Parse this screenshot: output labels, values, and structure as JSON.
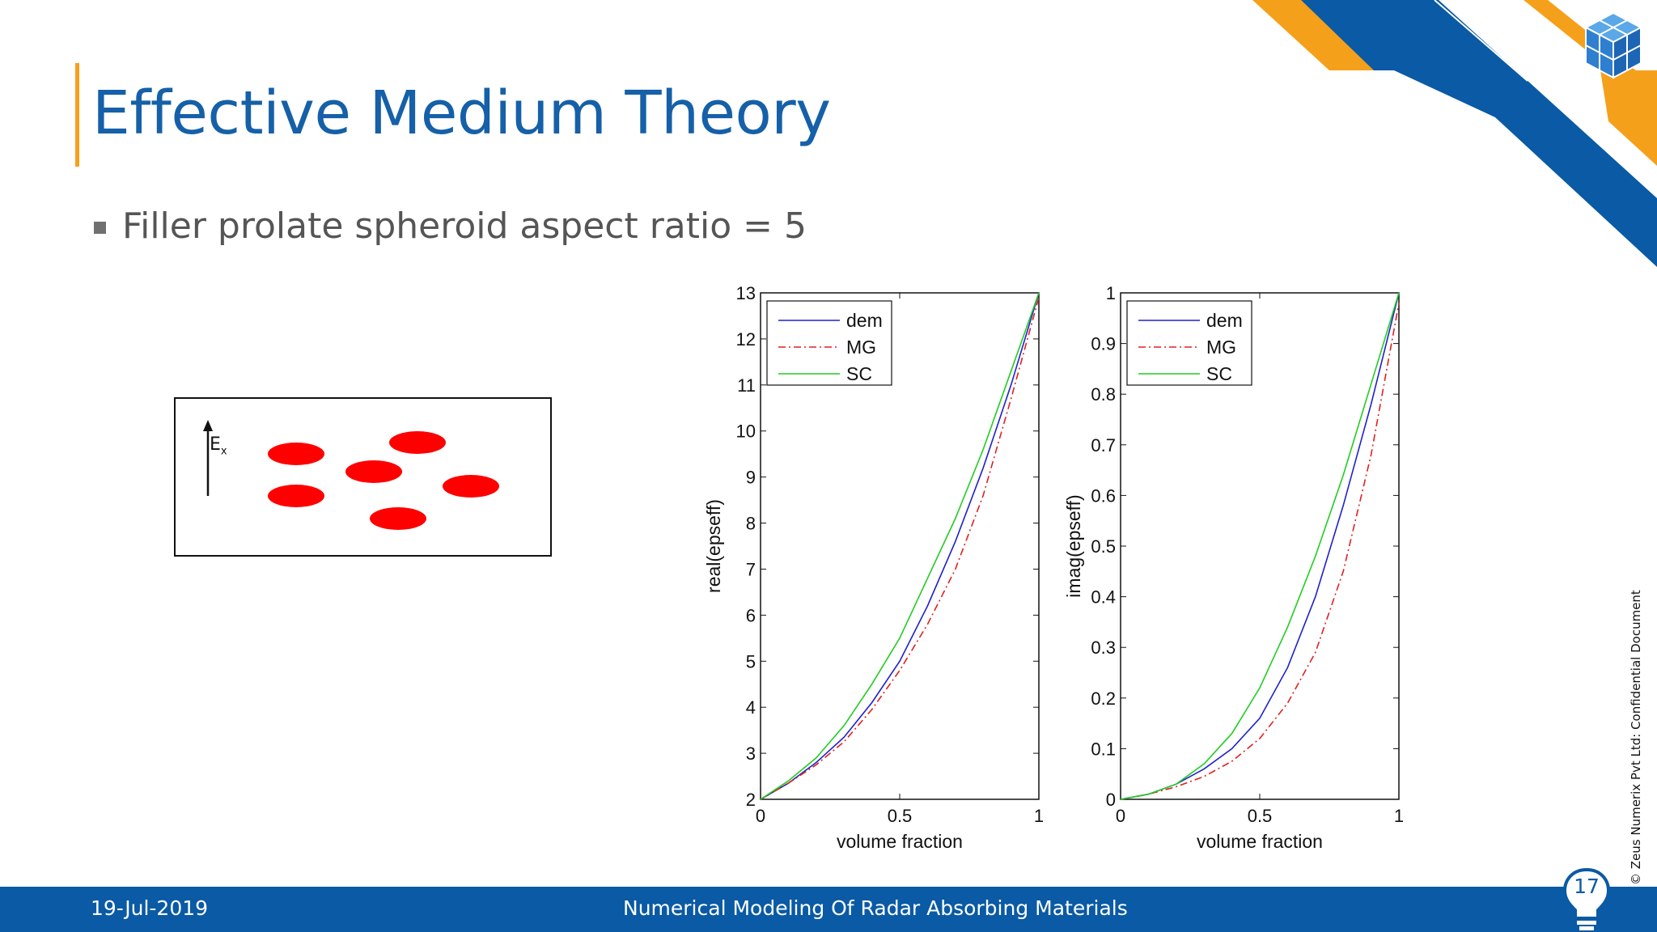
{
  "slide": {
    "title": "Effective Medium Theory",
    "bullet": "Filler prolate spheroid aspect ratio = 5"
  },
  "diagram": {
    "field_label": "E",
    "field_sub": "x"
  },
  "colors": {
    "title_blue": "#1560a8",
    "accent_orange": "#f5a01a",
    "footer_blue": "#0a5aa5",
    "dem": "#2020cc",
    "MG": "#e02020",
    "SC": "#22cc22",
    "inclusion_red": "#ff0000"
  },
  "icons": [
    "cube-logo-icon",
    "lightbulb-badge-icon",
    "field-arrow-icon"
  ],
  "side_note": "© Zeus Numerix Pvt Ltd: Confidential Document",
  "footer": {
    "date": "19-Jul-2019",
    "title": "Numerical Modeling Of Radar Absorbing Materials",
    "page": "17"
  },
  "chart_data": [
    {
      "type": "line",
      "xlabel": "volume fraction",
      "ylabel": "real(epseff)",
      "xlim": [
        0,
        1
      ],
      "ylim": [
        2,
        13
      ],
      "xticks": [
        "0",
        "0.5",
        "1"
      ],
      "yticks": [
        "2",
        "3",
        "4",
        "5",
        "6",
        "7",
        "8",
        "9",
        "10",
        "11",
        "12",
        "13"
      ],
      "legend_position": "top-left",
      "x": [
        0,
        0.1,
        0.2,
        0.3,
        0.4,
        0.5,
        0.6,
        0.7,
        0.8,
        0.9,
        1.0
      ],
      "series": [
        {
          "name": "dem",
          "style": "solid",
          "color": "#2020cc",
          "values": [
            2.0,
            2.35,
            2.8,
            3.35,
            4.1,
            5.0,
            6.2,
            7.6,
            9.2,
            11.0,
            13.0
          ]
        },
        {
          "name": "MG",
          "style": "dashdot",
          "color": "#e02020",
          "values": [
            2.0,
            2.35,
            2.75,
            3.25,
            3.95,
            4.8,
            5.8,
            7.0,
            8.6,
            10.7,
            12.9
          ]
        },
        {
          "name": "SC",
          "style": "solid",
          "color": "#22cc22",
          "values": [
            2.0,
            2.4,
            2.9,
            3.6,
            4.5,
            5.5,
            6.8,
            8.1,
            9.6,
            11.3,
            13.0
          ]
        }
      ]
    },
    {
      "type": "line",
      "xlabel": "volume fraction",
      "ylabel": "imag(epseff)",
      "xlim": [
        0,
        1
      ],
      "ylim": [
        0,
        1
      ],
      "xticks": [
        "0",
        "0.5",
        "1"
      ],
      "yticks": [
        "0",
        "0.1",
        "0.2",
        "0.3",
        "0.4",
        "0.5",
        "0.6",
        "0.7",
        "0.8",
        "0.9",
        "1"
      ],
      "legend_position": "top-left",
      "x": [
        0,
        0.1,
        0.2,
        0.3,
        0.4,
        0.5,
        0.6,
        0.7,
        0.8,
        0.9,
        1.0
      ],
      "series": [
        {
          "name": "dem",
          "style": "solid",
          "color": "#2020cc",
          "values": [
            0.0,
            0.01,
            0.03,
            0.06,
            0.1,
            0.16,
            0.26,
            0.4,
            0.58,
            0.78,
            1.0
          ]
        },
        {
          "name": "MG",
          "style": "dashdot",
          "color": "#e02020",
          "values": [
            0.0,
            0.01,
            0.025,
            0.045,
            0.075,
            0.12,
            0.19,
            0.29,
            0.45,
            0.68,
            0.98
          ]
        },
        {
          "name": "SC",
          "style": "solid",
          "color": "#22cc22",
          "values": [
            0.0,
            0.01,
            0.03,
            0.07,
            0.13,
            0.22,
            0.34,
            0.48,
            0.64,
            0.82,
            1.0
          ]
        }
      ]
    }
  ]
}
